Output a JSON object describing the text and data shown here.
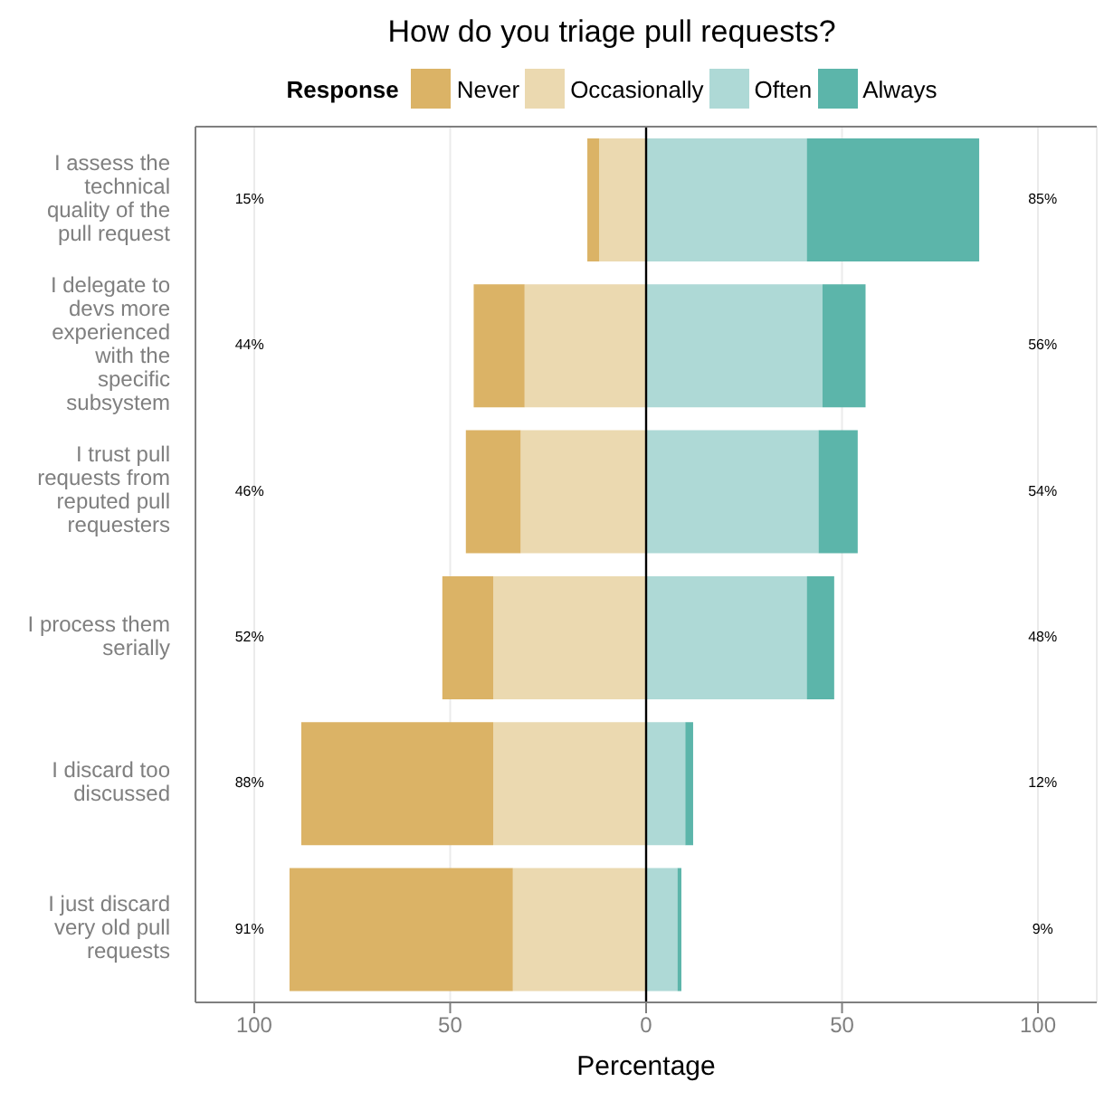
{
  "chart_data": {
    "type": "bar",
    "orientation": "horizontal",
    "stacked": true,
    "title": "How do you triage pull requests?",
    "legend_title": "Response",
    "legend": "top",
    "xlabel": "Percentage",
    "categories": [
      "I assess the technical quality of the pull request",
      "I delegate to devs more experienced with the specific subsystem",
      "I trust pull requests from reputed pull requesters",
      "I process them serially",
      "I discard too discussed",
      "I just discard very old pull requests"
    ],
    "series": [
      {
        "name": "Occasionally",
        "color": "#ebd9b0",
        "values": [
          -12,
          -31,
          -32,
          -39,
          -39,
          -34
        ]
      },
      {
        "name": "Never",
        "color": "#dbb366",
        "values": [
          -3,
          -13,
          -14,
          -13,
          -49,
          -57
        ]
      },
      {
        "name": "Often",
        "color": "#aed9d6",
        "values": [
          41,
          45,
          44,
          41,
          10,
          8
        ]
      },
      {
        "name": "Always",
        "color": "#5cb5aa",
        "values": [
          44,
          11,
          10,
          7,
          2,
          1
        ]
      }
    ],
    "totals": [
      [
        "15%",
        "85%"
      ],
      [
        "44%",
        "56%"
      ],
      [
        "46%",
        "54%"
      ],
      [
        "52%",
        "48%"
      ],
      [
        "88%",
        "12%"
      ],
      [
        "91%",
        "9%"
      ]
    ],
    "xlim": [
      -115,
      115
    ],
    "xticks": [
      {
        "value": -100,
        "label": "100"
      },
      {
        "value": -50,
        "label": "50"
      },
      0,
      50,
      {
        "value": 100,
        "label": "100"
      }
    ],
    "ref_lines": [
      {
        "axis": "x",
        "value": 0,
        "color": "#000000"
      }
    ],
    "grid": "x"
  }
}
